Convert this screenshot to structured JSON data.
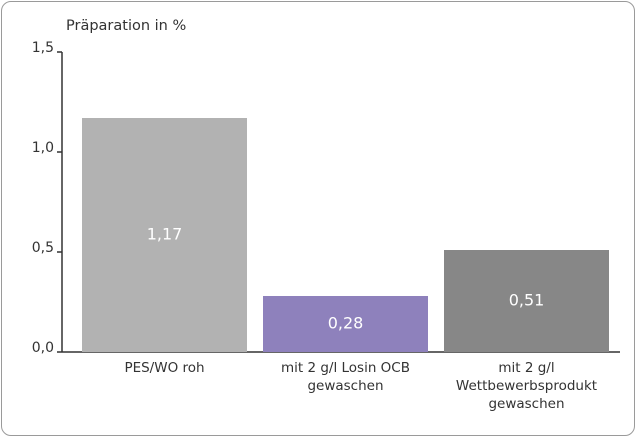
{
  "chart_data": {
    "type": "bar",
    "title": "Präparation in %",
    "categories": [
      "PES/WO roh",
      "mit 2 g/l Losin OCB\ngewaschen",
      "mit 2 g/l\nWettbewerbsprodukt\ngewaschen"
    ],
    "values": [
      1.17,
      0.28,
      0.51
    ],
    "value_labels": [
      "1,17",
      "0,28",
      "0,51"
    ],
    "colors": [
      "#b2b2b2",
      "#8e81bc",
      "#878787"
    ],
    "ylim": [
      0,
      1.5
    ],
    "yticks": [
      {
        "value": 0,
        "label": "0,0"
      },
      {
        "value": 0.5,
        "label": "0,5"
      },
      {
        "value": 1,
        "label": "1,0"
      },
      {
        "value": 1.5,
        "label": "1,5"
      }
    ]
  }
}
